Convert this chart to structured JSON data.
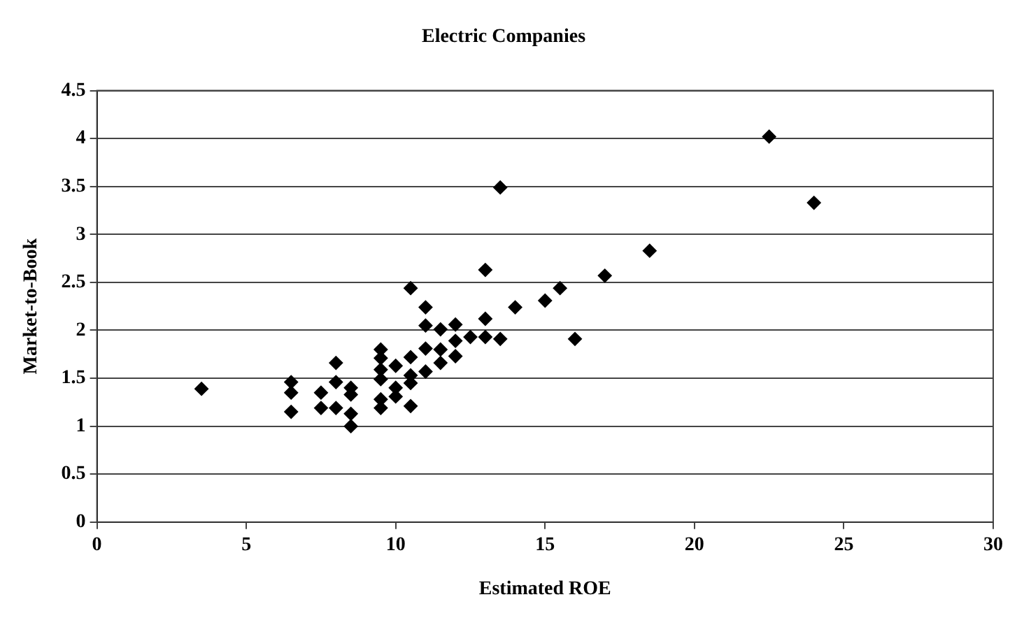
{
  "chart_data": {
    "type": "scatter",
    "title": "Electric Companies",
    "xlabel": "Estimated ROE",
    "ylabel": "Market-to-Book",
    "x": [
      3.5,
      6.5,
      6.5,
      6.5,
      7.5,
      7.5,
      8,
      8,
      8,
      8.5,
      8.5,
      8.5,
      8.5,
      9.5,
      9.5,
      9.5,
      9.5,
      9.5,
      9.5,
      10,
      10,
      10,
      10.5,
      10.5,
      10.5,
      10.5,
      10.5,
      11,
      11,
      11,
      11,
      11.5,
      11.5,
      11.5,
      12,
      12,
      12,
      12.5,
      13,
      13,
      13,
      13.5,
      13.5,
      14,
      15,
      15.5,
      16,
      17,
      18.5,
      22.5,
      24
    ],
    "series": [
      {
        "color": "#000000",
        "values": [
          1.39,
          1.46,
          1.35,
          1.15,
          1.35,
          1.19,
          1.66,
          1.46,
          1.19,
          1.4,
          1.33,
          1.13,
          1.0,
          1.8,
          1.71,
          1.59,
          1.49,
          1.28,
          1.19,
          1.63,
          1.4,
          1.31,
          2.44,
          1.72,
          1.53,
          1.45,
          1.21,
          2.24,
          2.05,
          1.81,
          1.57,
          2.01,
          1.8,
          1.66,
          2.06,
          1.89,
          1.73,
          1.93,
          2.63,
          2.12,
          1.93,
          3.49,
          1.91,
          2.24,
          2.31,
          2.44,
          1.91,
          2.57,
          2.83,
          4.02,
          3.33
        ]
      }
    ],
    "xlim": [
      0,
      30
    ],
    "xticks": [
      0,
      5,
      10,
      15,
      20,
      25,
      30
    ],
    "ylim": [
      0,
      4.5
    ],
    "yticks": [
      0,
      0.5,
      1,
      1.5,
      2,
      2.5,
      3,
      3.5,
      4,
      4.5
    ],
    "grid": "y",
    "marker": "diamond",
    "legend": false
  }
}
